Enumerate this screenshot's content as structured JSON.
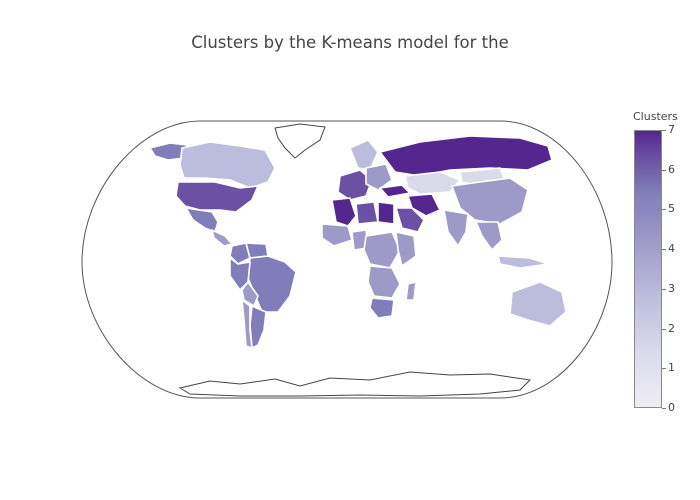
{
  "title": "Clusters by the K-means model for the",
  "legend": {
    "title": "Clusters",
    "ticks": [
      "0",
      "1",
      "2",
      "3",
      "4",
      "5",
      "6",
      "7"
    ],
    "range": [
      0,
      7
    ],
    "colorscale": [
      "#efedf5",
      "#dadaeb",
      "#bcbddc",
      "#9e9ac8",
      "#807dba",
      "#6a51a3",
      "#54278f"
    ]
  },
  "colors": {
    "ocean_outline": "#555555",
    "country_border": "#ffffff",
    "no_data": "#ffffff"
  },
  "regions": [
    {
      "name": "Russia",
      "value": 7
    },
    {
      "name": "Canada",
      "value": 2
    },
    {
      "name": "Alaska",
      "value": 5
    },
    {
      "name": "United States",
      "value": 6
    },
    {
      "name": "Mexico",
      "value": 5
    },
    {
      "name": "Central America",
      "value": 4
    },
    {
      "name": "Colombia",
      "value": 5
    },
    {
      "name": "Venezuela",
      "value": 5
    },
    {
      "name": "Brazil",
      "value": 5
    },
    {
      "name": "Peru",
      "value": 5
    },
    {
      "name": "Bolivia",
      "value": 4
    },
    {
      "name": "Argentina",
      "value": 5
    },
    {
      "name": "Chile",
      "value": 4
    },
    {
      "name": "Algeria",
      "value": 7
    },
    {
      "name": "Libya",
      "value": 6
    },
    {
      "name": "Egypt",
      "value": 7
    },
    {
      "name": "West Africa",
      "value": 3
    },
    {
      "name": "Nigeria",
      "value": 4
    },
    {
      "name": "Central Africa",
      "value": 3
    },
    {
      "name": "East Africa",
      "value": 3
    },
    {
      "name": "Southern Africa",
      "value": 4
    },
    {
      "name": "South Africa",
      "value": 5
    },
    {
      "name": "Madagascar",
      "value": 4
    },
    {
      "name": "Saudi Arabia",
      "value": 6
    },
    {
      "name": "Iran",
      "value": 7
    },
    {
      "name": "Turkey",
      "value": 7
    },
    {
      "name": "Kazakhstan",
      "value": 1
    },
    {
      "name": "China",
      "value": 4
    },
    {
      "name": "Mongolia",
      "value": 1
    },
    {
      "name": "India",
      "value": 3
    },
    {
      "name": "Southeast Asia",
      "value": 3
    },
    {
      "name": "Western Europe",
      "value": 6
    },
    {
      "name": "Scandinavia",
      "value": 2
    },
    {
      "name": "Eastern Europe",
      "value": 3
    },
    {
      "name": "Australia",
      "value": 2
    },
    {
      "name": "Indonesia",
      "value": 2
    }
  ]
}
